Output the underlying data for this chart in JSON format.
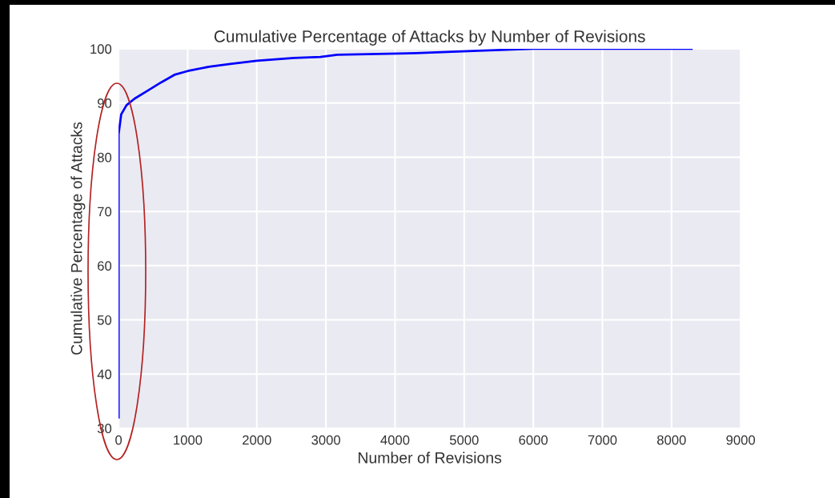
{
  "chart_data": {
    "type": "line",
    "title": "Cumulative Percentage of Attacks by Number of Revisions",
    "xlabel": "Number of Revisions",
    "ylabel": "Cumulative Percentage of Attacks",
    "series": [
      {
        "color": "#0000ff",
        "x": [
          0,
          0,
          38,
          115,
          231,
          423,
          615,
          808,
          1000,
          1308,
          1615,
          2000,
          2538,
          2920,
          3165,
          4300,
          5130,
          6000,
          8290
        ],
        "values": [
          32,
          84.2,
          87.9,
          89.6,
          90.8,
          92.3,
          93.8,
          95.2,
          95.9,
          96.7,
          97.2,
          97.8,
          98.3,
          98.5,
          98.9,
          99.2,
          99.6,
          100,
          100
        ]
      }
    ],
    "xlim": [
      0,
      9000
    ],
    "xticks": [
      0,
      1000,
      2000,
      3000,
      4000,
      5000,
      6000,
      7000,
      8000,
      9000
    ],
    "ylim": [
      30,
      100
    ],
    "yticks": [
      30,
      40,
      50,
      60,
      70,
      80,
      90,
      100
    ],
    "grid": true,
    "marker": "none",
    "line_style": "solid"
  }
}
